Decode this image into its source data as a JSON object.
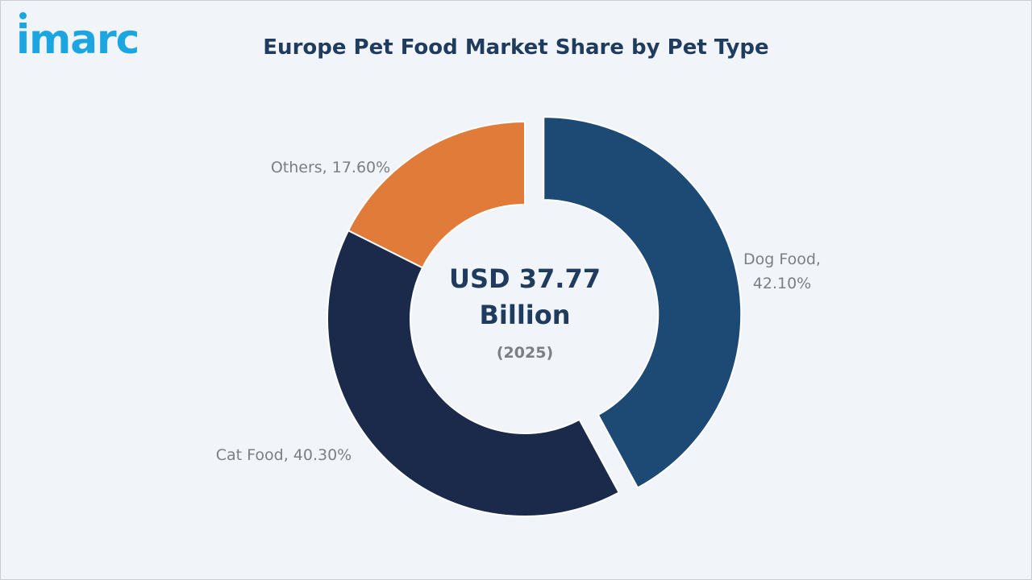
{
  "brand": {
    "logo_text": "imarc",
    "accent": "#1ba6e2"
  },
  "title": "Europe Pet Food Market Share by Pet Type",
  "chart_data": {
    "type": "pie",
    "donut": true,
    "title": "Europe Pet Food Market Share by Pet Type",
    "center": {
      "line1": "USD 37.77",
      "line2": "Billion",
      "line3": "(2025)"
    },
    "slices": [
      {
        "label_line1": "Dog Food,",
        "label_line2": "42.10%",
        "name": "Dog Food",
        "value": 42.1,
        "color": "#1d4a75",
        "exploded": true
      },
      {
        "label_line1": "Cat Food, 40.30%",
        "label_line2": "",
        "name": "Cat Food",
        "value": 40.3,
        "color": "#1b2a4a",
        "exploded": false
      },
      {
        "label_line1": "Others, 17.60%",
        "label_line2": "",
        "name": "Others",
        "value": 17.6,
        "color": "#e07b39",
        "exploded": false
      }
    ]
  }
}
